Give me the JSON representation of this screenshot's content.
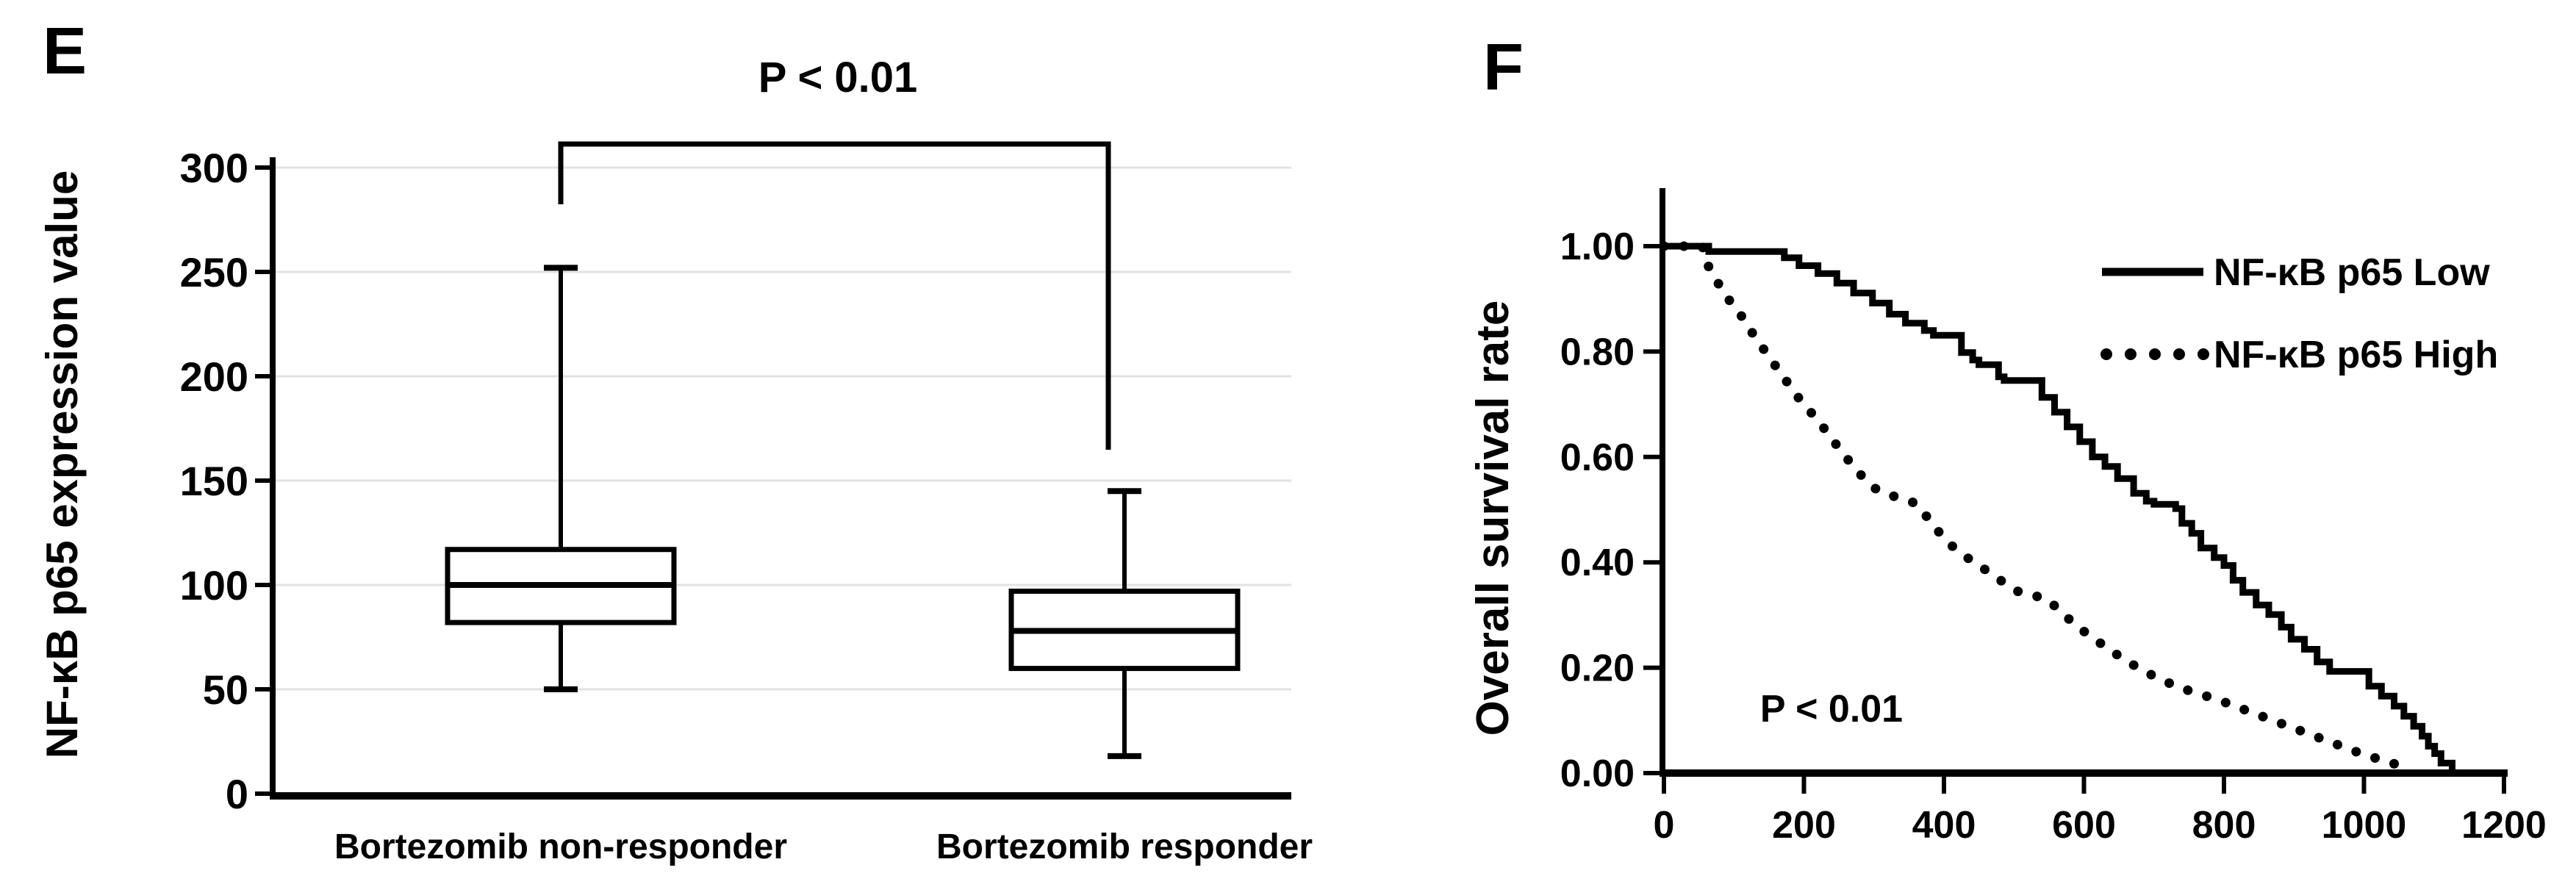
{
  "figure": {
    "background": "#ffffff",
    "ink_color": "#000000",
    "grid_color": "#e2e2e2"
  },
  "panels": {
    "E": {
      "label": "E"
    },
    "F": {
      "label": "F"
    }
  },
  "chart_data": [
    {
      "type": "boxplot",
      "panel": "E",
      "title": "",
      "ylabel": "NF-κB p65 expression value",
      "xlabel": "",
      "ylim": [
        0,
        300
      ],
      "yticks": [
        0,
        50,
        100,
        150,
        200,
        250,
        300
      ],
      "grid": true,
      "annotation": "P < 0.01",
      "categories": [
        "Bortezomib non-responder",
        "Bortezomib responder"
      ],
      "series": [
        {
          "name": "Bortezomib non-responder",
          "whisker_low": 50,
          "q1": 82,
          "median": 100,
          "q3": 117,
          "whisker_high": 252
        },
        {
          "name": "Bortezomib responder",
          "whisker_low": 18,
          "q1": 60,
          "median": 78,
          "q3": 97,
          "whisker_high": 145
        }
      ]
    },
    {
      "type": "line",
      "panel": "F",
      "title": "",
      "ylabel": "Overall survival rate",
      "xlabel": "",
      "xlim": [
        0,
        1200
      ],
      "ylim": [
        0,
        1.1
      ],
      "xticks": [
        0,
        200,
        400,
        600,
        800,
        1000,
        1200
      ],
      "yticks": [
        0,
        0.2,
        0.4,
        0.6,
        0.8,
        1.0
      ],
      "ytick_labels": [
        "0.00",
        "0.20",
        "0.40",
        "0.60",
        "0.80",
        "1.00"
      ],
      "grid": false,
      "annotation": "P < 0.01",
      "legend_position": "top-right",
      "legend": [
        {
          "label": "NF-κB p65 Low",
          "style": "solid"
        },
        {
          "label": "NF-κB p65 High",
          "style": "dotted"
        }
      ],
      "series": [
        {
          "name": "NF-κB p65 Low",
          "style": "solid",
          "step": true,
          "points": [
            [
              0,
              1
            ],
            [
              64,
              1
            ],
            [
              64,
              0.99
            ],
            [
              172,
              0.99
            ],
            [
              172,
              0.978
            ],
            [
              193,
              0.978
            ],
            [
              193,
              0.963
            ],
            [
              220,
              0.963
            ],
            [
              220,
              0.948
            ],
            [
              247,
              0.948
            ],
            [
              247,
              0.93
            ],
            [
              271,
              0.93
            ],
            [
              271,
              0.911
            ],
            [
              298,
              0.911
            ],
            [
              298,
              0.892
            ],
            [
              322,
              0.892
            ],
            [
              322,
              0.871
            ],
            [
              345,
              0.871
            ],
            [
              345,
              0.854
            ],
            [
              372,
              0.854
            ],
            [
              372,
              0.84
            ],
            [
              385,
              0.84
            ],
            [
              385,
              0.831
            ],
            [
              425,
              0.831
            ],
            [
              425,
              0.798
            ],
            [
              441,
              0.798
            ],
            [
              441,
              0.784
            ],
            [
              450,
              0.784
            ],
            [
              450,
              0.775
            ],
            [
              478,
              0.775
            ],
            [
              478,
              0.752
            ],
            [
              486,
              0.752
            ],
            [
              486,
              0.745
            ],
            [
              540,
              0.745
            ],
            [
              540,
              0.713
            ],
            [
              558,
              0.713
            ],
            [
              558,
              0.685
            ],
            [
              576,
              0.685
            ],
            [
              576,
              0.657
            ],
            [
              594,
              0.657
            ],
            [
              594,
              0.629
            ],
            [
              612,
              0.629
            ],
            [
              612,
              0.6
            ],
            [
              630,
              0.6
            ],
            [
              630,
              0.582
            ],
            [
              648,
              0.582
            ],
            [
              648,
              0.559
            ],
            [
              671,
              0.559
            ],
            [
              671,
              0.531
            ],
            [
              689,
              0.531
            ],
            [
              689,
              0.516
            ],
            [
              700,
              0.516
            ],
            [
              700,
              0.51
            ],
            [
              731,
              0.51
            ],
            [
              731,
              0.502
            ],
            [
              740,
              0.502
            ],
            [
              740,
              0.474
            ],
            [
              754,
              0.474
            ],
            [
              754,
              0.455
            ],
            [
              767,
              0.455
            ],
            [
              767,
              0.427
            ],
            [
              786,
              0.427
            ],
            [
              786,
              0.409
            ],
            [
              800,
              0.409
            ],
            [
              800,
              0.394
            ],
            [
              813,
              0.394
            ],
            [
              813,
              0.366
            ],
            [
              827,
              0.366
            ],
            [
              827,
              0.343
            ],
            [
              846,
              0.343
            ],
            [
              846,
              0.319
            ],
            [
              864,
              0.319
            ],
            [
              864,
              0.301
            ],
            [
              882,
              0.301
            ],
            [
              882,
              0.277
            ],
            [
              896,
              0.277
            ],
            [
              896,
              0.254
            ],
            [
              915,
              0.254
            ],
            [
              915,
              0.235
            ],
            [
              933,
              0.235
            ],
            [
              933,
              0.211
            ],
            [
              951,
              0.211
            ],
            [
              951,
              0.193
            ],
            [
              1007,
              0.193
            ],
            [
              1007,
              0.165
            ],
            [
              1025,
              0.165
            ],
            [
              1025,
              0.146
            ],
            [
              1043,
              0.146
            ],
            [
              1043,
              0.127
            ],
            [
              1057,
              0.127
            ],
            [
              1057,
              0.108
            ],
            [
              1071,
              0.108
            ],
            [
              1071,
              0.089
            ],
            [
              1083,
              0.089
            ],
            [
              1083,
              0.07
            ],
            [
              1092,
              0.07
            ],
            [
              1092,
              0.051
            ],
            [
              1101,
              0.051
            ],
            [
              1101,
              0.037
            ],
            [
              1110,
              0.037
            ],
            [
              1110,
              0.019
            ],
            [
              1126,
              0.019
            ],
            [
              1126,
              0
            ],
            [
              1131,
              0
            ]
          ]
        },
        {
          "name": "NF-κB p65 High",
          "style": "dotted",
          "step": false,
          "points": [
            [
              0,
              1
            ],
            [
              55,
              1
            ],
            [
              62,
              0.965
            ],
            [
              72,
              0.945
            ],
            [
              81,
              0.92
            ],
            [
              92,
              0.9
            ],
            [
              103,
              0.88
            ],
            [
              114,
              0.862
            ],
            [
              124,
              0.84
            ],
            [
              134,
              0.82
            ],
            [
              145,
              0.8
            ],
            [
              155,
              0.78
            ],
            [
              166,
              0.762
            ],
            [
              176,
              0.742
            ],
            [
              186,
              0.722
            ],
            [
              197,
              0.705
            ],
            [
              208,
              0.688
            ],
            [
              219,
              0.67
            ],
            [
              230,
              0.652
            ],
            [
              240,
              0.634
            ],
            [
              251,
              0.615
            ],
            [
              261,
              0.598
            ],
            [
              272,
              0.58
            ],
            [
              282,
              0.565
            ],
            [
              293,
              0.55
            ],
            [
              304,
              0.538
            ],
            [
              318,
              0.53
            ],
            [
              334,
              0.523
            ],
            [
              350,
              0.517
            ],
            [
              362,
              0.51
            ],
            [
              371,
              0.495
            ],
            [
              380,
              0.478
            ],
            [
              390,
              0.462
            ],
            [
              399,
              0.448
            ],
            [
              408,
              0.435
            ],
            [
              420,
              0.422
            ],
            [
              432,
              0.41
            ],
            [
              445,
              0.398
            ],
            [
              459,
              0.386
            ],
            [
              472,
              0.374
            ],
            [
              485,
              0.362
            ],
            [
              498,
              0.35
            ],
            [
              510,
              0.342
            ],
            [
              526,
              0.337
            ],
            [
              543,
              0.333
            ],
            [
              556,
              0.32
            ],
            [
              566,
              0.307
            ],
            [
              577,
              0.294
            ],
            [
              588,
              0.282
            ],
            [
              599,
              0.27
            ],
            [
              611,
              0.258
            ],
            [
              623,
              0.247
            ],
            [
              635,
              0.236
            ],
            [
              647,
              0.225
            ],
            [
              659,
              0.215
            ],
            [
              671,
              0.205
            ],
            [
              684,
              0.195
            ],
            [
              697,
              0.186
            ],
            [
              710,
              0.178
            ],
            [
              723,
              0.17
            ],
            [
              737,
              0.163
            ],
            [
              751,
              0.156
            ],
            [
              766,
              0.15
            ],
            [
              782,
              0.143
            ],
            [
              798,
              0.136
            ],
            [
              814,
              0.128
            ],
            [
              830,
              0.12
            ],
            [
              846,
              0.112
            ],
            [
              862,
              0.104
            ],
            [
              878,
              0.096
            ],
            [
              894,
              0.088
            ],
            [
              910,
              0.08
            ],
            [
              926,
              0.072
            ],
            [
              942,
              0.064
            ],
            [
              958,
              0.056
            ],
            [
              974,
              0.048
            ],
            [
              990,
              0.04
            ],
            [
              1006,
              0.033
            ],
            [
              1022,
              0.026
            ],
            [
              1038,
              0.02
            ],
            [
              1054,
              0.013
            ],
            [
              1068,
              0.007
            ]
          ]
        }
      ]
    }
  ]
}
